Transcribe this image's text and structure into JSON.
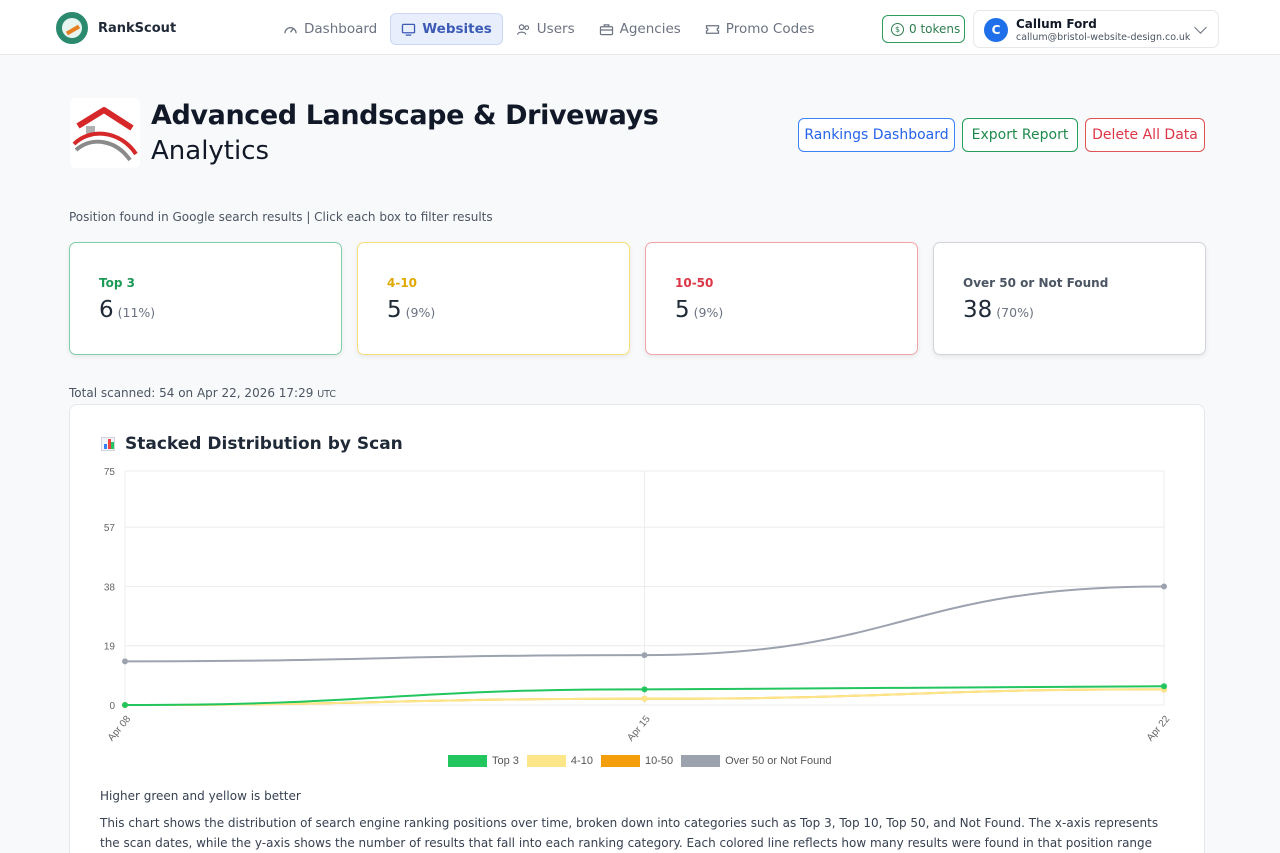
{
  "brand": {
    "name": "RankScout"
  },
  "nav": {
    "items": [
      {
        "label": "Dashboard",
        "icon": "gauge-icon",
        "active": false
      },
      {
        "label": "Websites",
        "icon": "monitor-icon",
        "active": true
      },
      {
        "label": "Users",
        "icon": "users-icon",
        "active": false
      },
      {
        "label": "Agencies",
        "icon": "briefcase-icon",
        "active": false
      },
      {
        "label": "Promo Codes",
        "icon": "ticket-icon",
        "active": false
      }
    ],
    "tokens": "0 tokens",
    "user": {
      "initial": "C",
      "name": "Callum Ford",
      "email": "callum@bristol-website-design.co.uk"
    }
  },
  "header": {
    "title": "Advanced Landscape & Driveways",
    "subtitle": "Analytics",
    "buttons": {
      "rankings": "Rankings Dashboard",
      "export": "Export Report",
      "delete": "Delete All Data"
    }
  },
  "hint": "Position found in Google search results | Click each box to filter results",
  "cards": [
    {
      "label": "Top 3",
      "value": "6",
      "pct": "(11%)"
    },
    {
      "label": "4-10",
      "value": "5",
      "pct": "(9%)"
    },
    {
      "label": "10-50",
      "value": "5",
      "pct": "(9%)"
    },
    {
      "label": "Over 50 or Not Found",
      "value": "38",
      "pct": "(70%)"
    }
  ],
  "scanned": {
    "text": "Total scanned: 54 on Apr 22, 2026 17:29",
    "tz": "UTC"
  },
  "panel": {
    "title": "Stacked Distribution by Scan",
    "note1": "Higher green and yellow is better",
    "note2": "This chart shows the distribution of search engine ranking positions over time, broken down into categories such as Top 3, Top 10, Top 50, and Not Found. The x-axis represents the scan dates, while the y-axis shows the number of results that fall into each ranking category. Each colored line reflects how many results were found in that position range during each scan. Green and yellow"
  },
  "colors": {
    "top3": "#22c55e",
    "r410": "#fde68a",
    "r1050": "#f59e0b",
    "over50": "#9ca3af"
  },
  "chart_data": {
    "type": "line",
    "title": "Stacked Distribution by Scan",
    "categories": [
      "Apr 08",
      "Apr 15",
      "Apr 22"
    ],
    "yticks": [
      "0",
      "19",
      "38",
      "57",
      "75"
    ],
    "ylim": [
      0,
      75
    ],
    "series": [
      {
        "name": "Top 3",
        "color": "#22c55e",
        "values": [
          0,
          5,
          6
        ]
      },
      {
        "name": "4-10",
        "color": "#fde68a",
        "values": [
          0,
          2,
          5
        ]
      },
      {
        "name": "10-50",
        "color": "#f59e0b",
        "values": [
          0,
          2,
          5
        ]
      },
      {
        "name": "Over 50 or Not Found",
        "color": "#9ca3af",
        "values": [
          14,
          16,
          38
        ]
      }
    ],
    "legend": "bottom",
    "grid": true
  }
}
